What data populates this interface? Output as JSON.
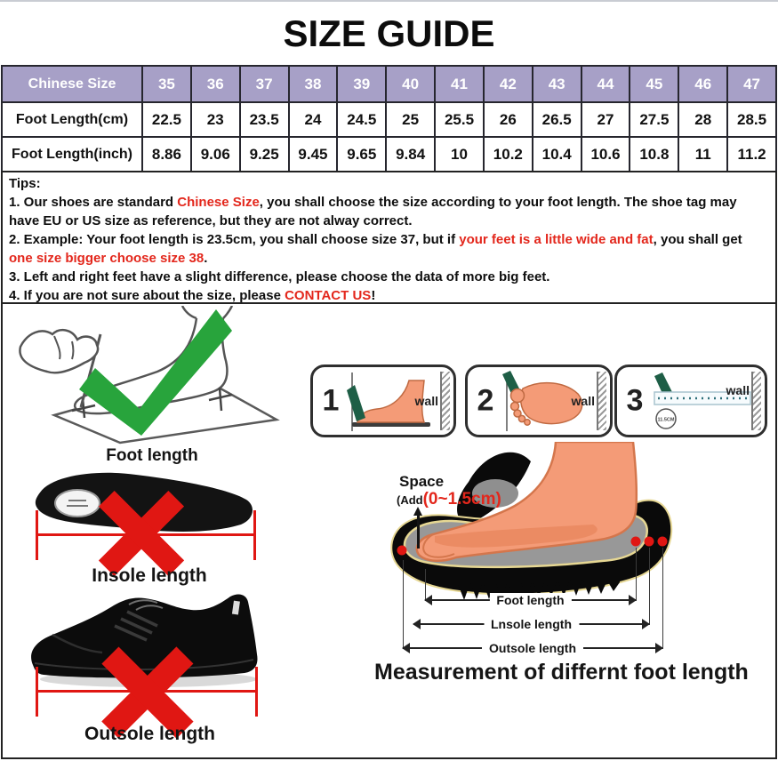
{
  "title": "SIZE GUIDE",
  "size_table": {
    "rows": [
      {
        "label": "Chinese Size",
        "values": [
          "35",
          "36",
          "37",
          "38",
          "39",
          "40",
          "41",
          "42",
          "43",
          "44",
          "45",
          "46",
          "47"
        ]
      },
      {
        "label": "Foot Length(cm)",
        "values": [
          "22.5",
          "23",
          "23.5",
          "24",
          "24.5",
          "25",
          "25.5",
          "26",
          "26.5",
          "27",
          "27.5",
          "28",
          "28.5"
        ]
      },
      {
        "label": "Foot Length(inch)",
        "values": [
          "8.86",
          "9.06",
          "9.25",
          "9.45",
          "9.65",
          "9.84",
          "10",
          "10.2",
          "10.4",
          "10.6",
          "10.8",
          "11",
          "11.2"
        ]
      }
    ]
  },
  "tips": {
    "heading": "Tips:",
    "tip1": {
      "a": "1. Our shoes are standard ",
      "red": "Chinese Size",
      "b": ", you shall choose the size according to your foot length. The shoe tag may have EU or US size as reference, but they are not alway correct."
    },
    "tip2": {
      "a": "2. Example: Your foot length is 23.5cm, you shall choose size 37, but if ",
      "red1": "your feet is a little wide and fat",
      "b": ", you shall get ",
      "red2": "one size bigger choose size 38",
      "c": "."
    },
    "tip3": "3. Left and right feet have a slight difference, please choose the data of more big feet.",
    "tip4": {
      "a": "4. If you are not sure about the size, please ",
      "red": "CONTACT US",
      "b": "!"
    }
  },
  "illus": {
    "foot_trace_caption": "Foot length",
    "insole_caption": "Insole length",
    "outsole_caption": "Outsole length",
    "panels": [
      {
        "number": "1",
        "wall": "wall"
      },
      {
        "number": "2",
        "wall": "wall"
      },
      {
        "number": "3",
        "wall": "wall",
        "circle": "11.5CM"
      }
    ],
    "space": {
      "label": "Space",
      "add": "(Add",
      "range": "(0~1.5cm)"
    },
    "arrows": {
      "foot": "Foot length",
      "insole": "Lnsole length",
      "outsole": "Outsole length"
    },
    "heading": "Measurement of differnt foot length"
  },
  "colors": {
    "header_purple": "#a7a0c7",
    "accent_red": "#e01713",
    "red_text": "#e3271c",
    "check_green": "#28a43c",
    "pencil_green": "#1e5e46",
    "foot_orange": "#f49b77",
    "table_border": "#26262e"
  }
}
